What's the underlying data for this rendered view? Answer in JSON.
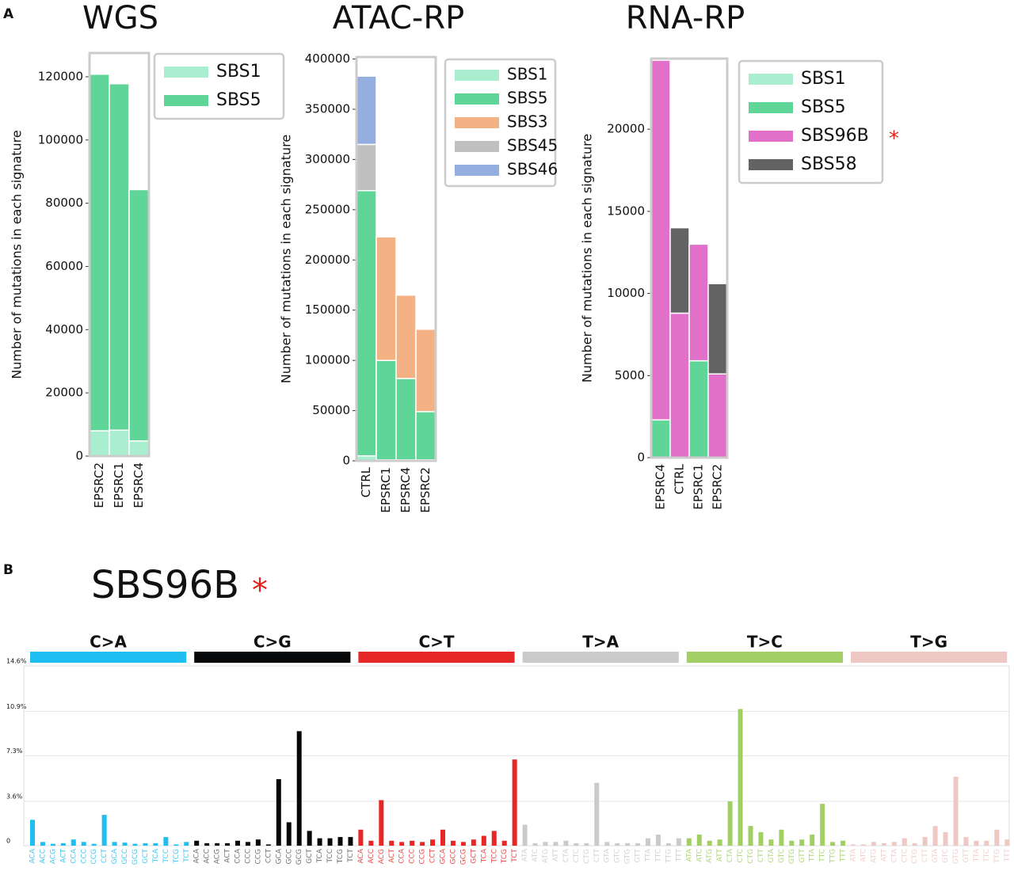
{
  "chart_data": [
    {
      "type": "stacked_bar",
      "panel": "A",
      "title": "WGS",
      "ylabel": "Number of mutations in each signature",
      "categories": [
        "EPSRC2",
        "EPSRC1",
        "EPSRC4"
      ],
      "series": [
        {
          "name": "SBS1",
          "color": "#a9efcf",
          "values": [
            8000,
            8200,
            4800
          ]
        },
        {
          "name": "SBS5",
          "color": "#5fd598",
          "values": [
            112800,
            109600,
            79500
          ]
        }
      ],
      "ylim": [
        0,
        127500
      ],
      "yticks": [
        0,
        20000,
        40000,
        60000,
        80000,
        100000,
        120000
      ]
    },
    {
      "type": "stacked_bar",
      "title": "ATAC-RP",
      "ylabel": "Number of mutations in each signature",
      "categories": [
        "CTRL",
        "EPSRC1",
        "EPSRC4",
        "EPSRC2"
      ],
      "series": [
        {
          "name": "SBS1",
          "color": "#a9efcf",
          "values": [
            5000,
            1000,
            1000,
            1000
          ]
        },
        {
          "name": "SBS5",
          "color": "#5fd598",
          "values": [
            264000,
            99000,
            81000,
            48000
          ]
        },
        {
          "name": "SBS3",
          "color": "#f4b183",
          "values": [
            0,
            123000,
            83000,
            82000
          ]
        },
        {
          "name": "SBS45",
          "color": "#c0c0c0",
          "values": [
            46000,
            0,
            0,
            0
          ]
        },
        {
          "name": "SBS46",
          "color": "#93aedf",
          "values": [
            68000,
            0,
            0,
            0
          ]
        }
      ],
      "ylim": [
        0,
        402000
      ],
      "yticks": [
        0,
        50000,
        100000,
        150000,
        200000,
        250000,
        300000,
        350000,
        400000
      ]
    },
    {
      "type": "stacked_bar",
      "title": "RNA-RP",
      "ylabel": "Number of mutations in each signature",
      "annotation": "*",
      "categories": [
        "EPSRC4",
        "CTRL",
        "EPSRC1",
        "EPSRC2"
      ],
      "series": [
        {
          "name": "SBS1",
          "color": "#a9efcf",
          "values": [
            0,
            0,
            0,
            0
          ]
        },
        {
          "name": "SBS5",
          "color": "#5fd598",
          "values": [
            2300,
            0,
            5900,
            0
          ]
        },
        {
          "name": "SBS96B",
          "color": "#e070c8",
          "values": [
            21900,
            8800,
            7100,
            5100
          ]
        },
        {
          "name": "SBS58",
          "color": "#636363",
          "values": [
            0,
            5200,
            0,
            5500
          ]
        }
      ],
      "ylim": [
        0,
        24300
      ],
      "yticks": [
        0,
        5000,
        10000,
        15000,
        20000
      ]
    },
    {
      "type": "signature",
      "panel": "B",
      "title": "SBS96B",
      "annotation": "*",
      "groups": [
        {
          "name": "C>A",
          "color": "#1ebff0"
        },
        {
          "name": "C>G",
          "color": "#050708"
        },
        {
          "name": "C>T",
          "color": "#e62725"
        },
        {
          "name": "T>A",
          "color": "#cbcacb"
        },
        {
          "name": "T>C",
          "color": "#a1cf64"
        },
        {
          "name": "T>G",
          "color": "#edc8c5"
        }
      ],
      "categories": [
        "ACA",
        "ACC",
        "ACG",
        "ACT",
        "CCA",
        "CCC",
        "CCG",
        "CCT",
        "GCA",
        "GCC",
        "GCG",
        "GCT",
        "TCA",
        "TCC",
        "TCG",
        "TCT",
        "ACA",
        "ACC",
        "ACG",
        "ACT",
        "CCA",
        "CCC",
        "CCG",
        "CCT",
        "GCA",
        "GCC",
        "GCG",
        "GCT",
        "TCA",
        "TCC",
        "TCG",
        "TCT",
        "ACA",
        "ACC",
        "ACG",
        "ACT",
        "CCA",
        "CCC",
        "CCG",
        "CCT",
        "GCA",
        "GCC",
        "GCG",
        "GCT",
        "TCA",
        "TCC",
        "TCG",
        "TCT",
        "ATA",
        "ATC",
        "ATG",
        "ATT",
        "CTA",
        "CTC",
        "CTG",
        "CTT",
        "GTA",
        "GTC",
        "GTG",
        "GTT",
        "TTA",
        "TTC",
        "TTG",
        "TTT",
        "ATA",
        "ATC",
        "ATG",
        "ATT",
        "CTA",
        "CTC",
        "CTG",
        "CTT",
        "GTA",
        "GTC",
        "GTG",
        "GTT",
        "TTA",
        "TTC",
        "TTG",
        "TTT",
        "ATA",
        "ATC",
        "ATG",
        "ATT",
        "CTA",
        "CTC",
        "CTG",
        "CTT",
        "GTA",
        "GTC",
        "GTG",
        "GTT",
        "TTA",
        "TTC",
        "TTG",
        "TTT"
      ],
      "values": [
        2.1,
        0.3,
        0.15,
        0.2,
        0.5,
        0.3,
        0.15,
        2.5,
        0.3,
        0.25,
        0.15,
        0.2,
        0.2,
        0.7,
        0.1,
        0.3,
        0.4,
        0.2,
        0.2,
        0.2,
        0.4,
        0.3,
        0.5,
        0.1,
        5.4,
        1.9,
        9.3,
        1.2,
        0.6,
        0.6,
        0.7,
        0.7,
        1.3,
        0.4,
        3.7,
        0.4,
        0.3,
        0.4,
        0.3,
        0.5,
        1.3,
        0.4,
        0.3,
        0.5,
        0.8,
        1.2,
        0.4,
        7.0,
        1.7,
        0.2,
        0.3,
        0.3,
        0.4,
        0.2,
        0.2,
        5.1,
        0.3,
        0.2,
        0.2,
        0.2,
        0.6,
        0.9,
        0.2,
        0.6,
        0.6,
        0.9,
        0.4,
        0.5,
        3.6,
        11.1,
        1.6,
        1.1,
        0.5,
        1.3,
        0.4,
        0.5,
        0.9,
        3.4,
        0.3,
        0.4,
        0.1,
        0.1,
        0.3,
        0.2,
        0.3,
        0.6,
        0.2,
        0.7,
        1.6,
        1.1,
        5.6,
        0.7,
        0.4,
        0.4,
        1.3,
        0.5
      ],
      "ylim": [
        0,
        14.6
      ],
      "yticks": [
        0,
        {
          "value": 3.6,
          "label": "3.6%"
        },
        {
          "value": 7.3,
          "label": "7.3%"
        },
        {
          "value": 10.9,
          "label": "10.9%"
        },
        {
          "value": 14.6,
          "label": "14.6%"
        }
      ],
      "grid": true
    }
  ]
}
